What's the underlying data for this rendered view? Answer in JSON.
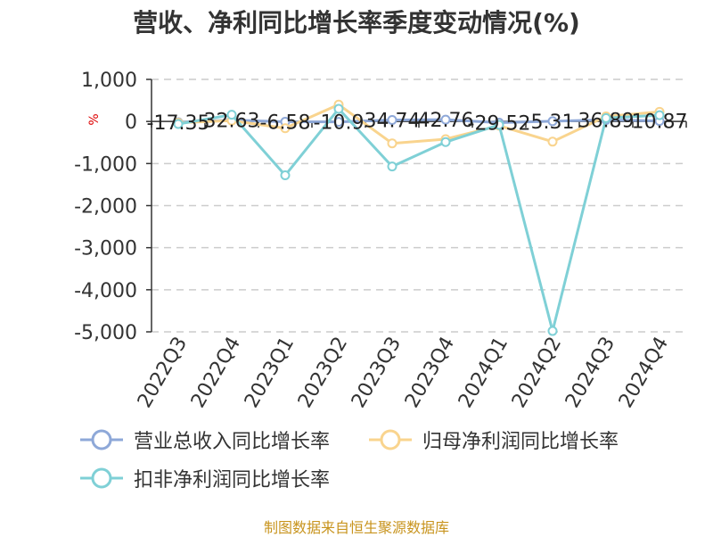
{
  "title": "营收、净利同比增长率季度变动情况(%)",
  "footer": "制图数据来自恒生聚源数据库",
  "colors": {
    "revenue": "#8ea8d8",
    "net_profit": "#f9d48e",
    "deducted_profit": "#7fd0d6",
    "axis": "#333333",
    "grid": "#cccccc",
    "unit": "#dd0000"
  },
  "chart_data": {
    "type": "line",
    "unit_label": "%",
    "categories": [
      "2022Q3",
      "2022Q4",
      "2023Q1",
      "2023Q2",
      "2023Q3",
      "2023Q4",
      "2024Q1",
      "2024Q2",
      "2024Q3",
      "2024Q4"
    ],
    "ylim": [
      -5000,
      1000
    ],
    "yticks": [
      1000,
      0,
      -1000,
      -2000,
      -3000,
      -4000,
      -5000
    ],
    "ytick_labels": [
      "1,000",
      "0",
      "-1,000",
      "-2,000",
      "-3,000",
      "-4,000",
      "-5,000"
    ],
    "grid": true,
    "legend_position": "bottom",
    "series": [
      {
        "name": "营业总收入同比增长率",
        "key": "revenue",
        "values": [
          -17.35,
          32.63,
          -6.58,
          -10.9,
          34.74,
          42.76,
          -29.52,
          5.31,
          36.89,
          10.87
        ],
        "labels": [
          "-17.35",
          "32.63",
          "-6.58",
          "-10.9",
          "34.74",
          "42.76",
          "-29.52",
          "5.31",
          "36.89",
          "10.87"
        ]
      },
      {
        "name": "归母净利润同比增长率",
        "key": "net_profit",
        "values": [
          -30,
          20,
          -160,
          400,
          -520,
          -420,
          -100,
          -480,
          120,
          230
        ]
      },
      {
        "name": "扣非净利润同比增长率",
        "key": "deducted_profit",
        "values": [
          -60,
          160,
          -1280,
          300,
          -1070,
          -490,
          -80,
          -4980,
          80,
          150
        ]
      }
    ]
  }
}
